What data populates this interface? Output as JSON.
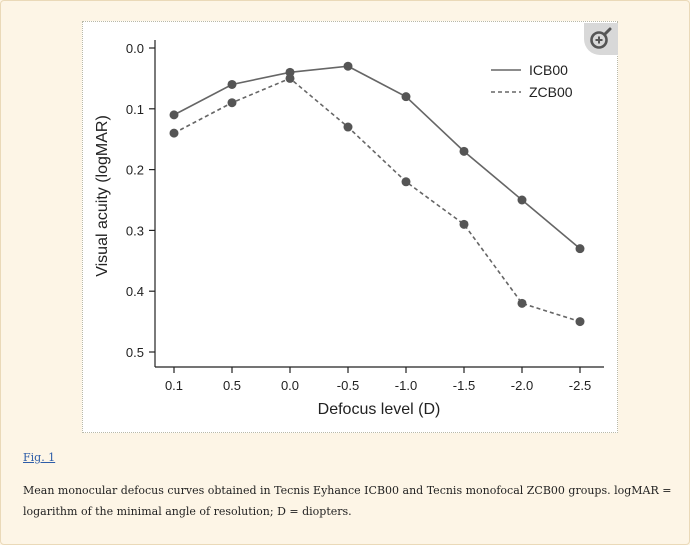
{
  "figure": {
    "zoom_icon": "zoom-in-icon",
    "link_label": "Fig. 1",
    "caption": "Mean monocular defocus curves obtained in Tecnis Eyhance ICB00 and Tecnis monofocal ZCB00 groups. logMAR = logarithm of the minimal angle of resolution; D = diopters."
  },
  "chart_data": {
    "type": "line",
    "title": "",
    "xlabel": "Defocus level (D)",
    "ylabel": "Visual acuity (logMAR)",
    "categories": [
      "0.1",
      "0.5",
      "0.0",
      "-0.5",
      "-1.0",
      "-1.5",
      "-2.0",
      "-2.5"
    ],
    "ylim": [
      0.0,
      0.5
    ],
    "y_inverted": true,
    "y_ticks": [
      "0.0",
      "0.1",
      "0.2",
      "0.3",
      "0.4",
      "0.5"
    ],
    "grid": false,
    "legend_position": "top-right",
    "series": [
      {
        "name": "ICB00",
        "style": "solid",
        "color": "#666666",
        "values": [
          0.11,
          0.06,
          0.04,
          0.03,
          0.08,
          0.17,
          0.25,
          0.33
        ]
      },
      {
        "name": "ZCB00",
        "style": "dashed",
        "color": "#666666",
        "values": [
          0.14,
          0.09,
          0.05,
          0.13,
          0.22,
          0.29,
          0.42,
          0.45
        ]
      }
    ]
  }
}
